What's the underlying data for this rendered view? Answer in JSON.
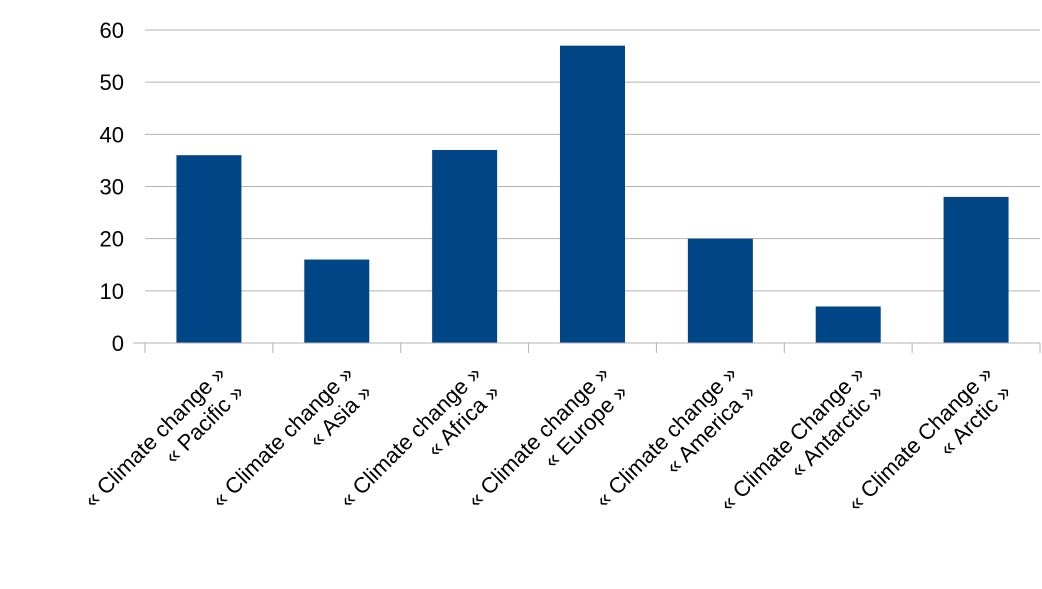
{
  "chart_data": {
    "type": "bar",
    "categories": [
      [
        "« Climate change »",
        "« Pacific »"
      ],
      [
        "« Climate change »",
        "« Asia »"
      ],
      [
        "« Climate change »",
        "« Africa »"
      ],
      [
        "« Climate change »",
        "« Europe »"
      ],
      [
        "« Climate change »",
        "« America »"
      ],
      [
        "« Climate Change »",
        "« Antarctic »"
      ],
      [
        "« Climate Change »",
        "« Arctic »"
      ]
    ],
    "values": [
      36,
      16,
      37,
      57,
      20,
      7,
      28
    ],
    "title": "",
    "xlabel": "",
    "ylabel": "",
    "ylim": [
      0,
      60
    ],
    "yticks": [
      "0",
      "10",
      "20",
      "30",
      "40",
      "50",
      "60"
    ],
    "grid": true,
    "legend": "none",
    "bar_color": "#004586"
  }
}
